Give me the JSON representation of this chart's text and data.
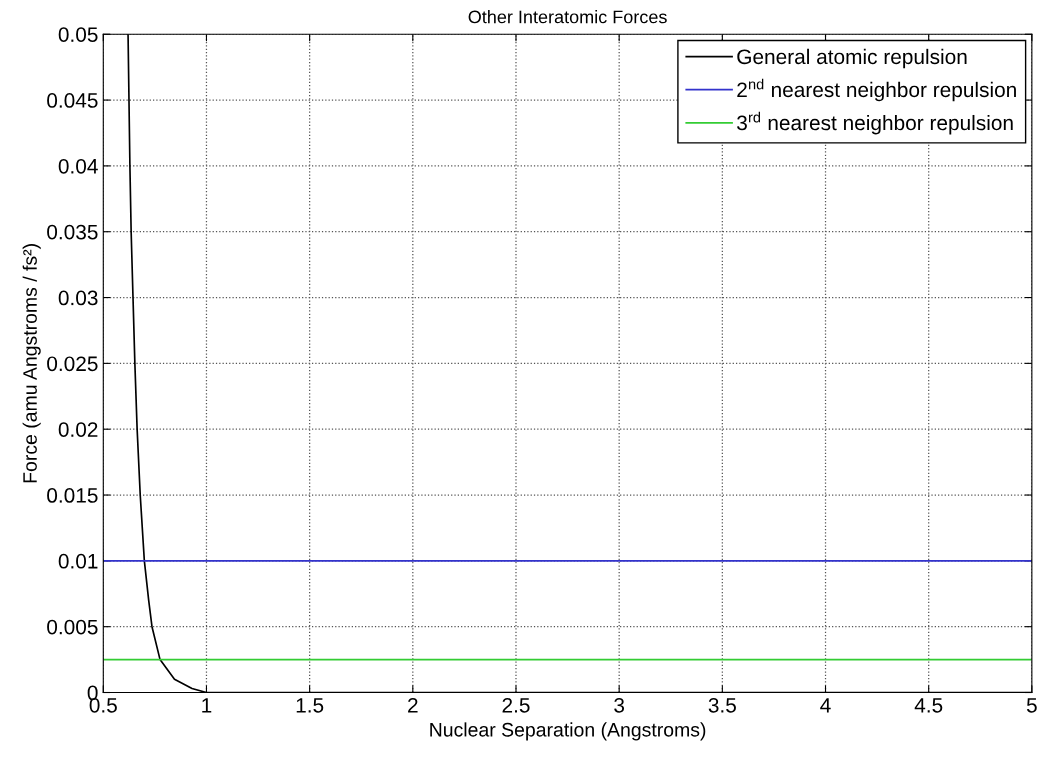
{
  "chart_data": {
    "type": "line",
    "title": "Other Interatomic Forces",
    "xlabel": "Nuclear Separation (Angstroms)",
    "ylabel": "Force (amu Angstroms / fs²)",
    "series": [
      {
        "name": "General atomic repulsion",
        "color": "#000000",
        "x": [
          0.62,
          0.629,
          0.635,
          0.644,
          0.653,
          0.664,
          0.679,
          0.699,
          0.72,
          0.736,
          0.775,
          0.845,
          0.93,
          1,
          1.5,
          2,
          2.5,
          3,
          3.5,
          4,
          4.5,
          5
        ],
        "values": [
          0.05,
          0.04,
          0.035,
          0.03,
          0.025,
          0.02,
          0.015,
          0.01,
          0.007,
          0.005,
          0.0025,
          0.001,
          0.0003,
          0,
          0,
          0,
          0,
          0,
          0,
          0,
          0,
          0
        ]
      },
      {
        "name": "2$^{nd}$ nearest neighbor repulsion",
        "color": "#3333cc",
        "x": [
          0.5,
          5
        ],
        "values": [
          0.01,
          0.01
        ]
      },
      {
        "name": "3$^{rd}$ nearest neighbor repulsion",
        "color": "#33cc33",
        "x": [
          0.5,
          5
        ],
        "values": [
          0.0025,
          0.0025
        ]
      }
    ],
    "xlim": [
      0.5,
      5
    ],
    "xticks": [
      0.5,
      1,
      1.5,
      2,
      2.5,
      3,
      3.5,
      4,
      4.5,
      5
    ],
    "ylim": [
      0,
      0.05
    ],
    "yticks": [
      0,
      0.005,
      0.01,
      0.015,
      0.02,
      0.025,
      0.03,
      0.035,
      0.04,
      0.045,
      0.05
    ],
    "grid": true,
    "legend": "top right",
    "line_style": "solid",
    "marker": "none"
  }
}
